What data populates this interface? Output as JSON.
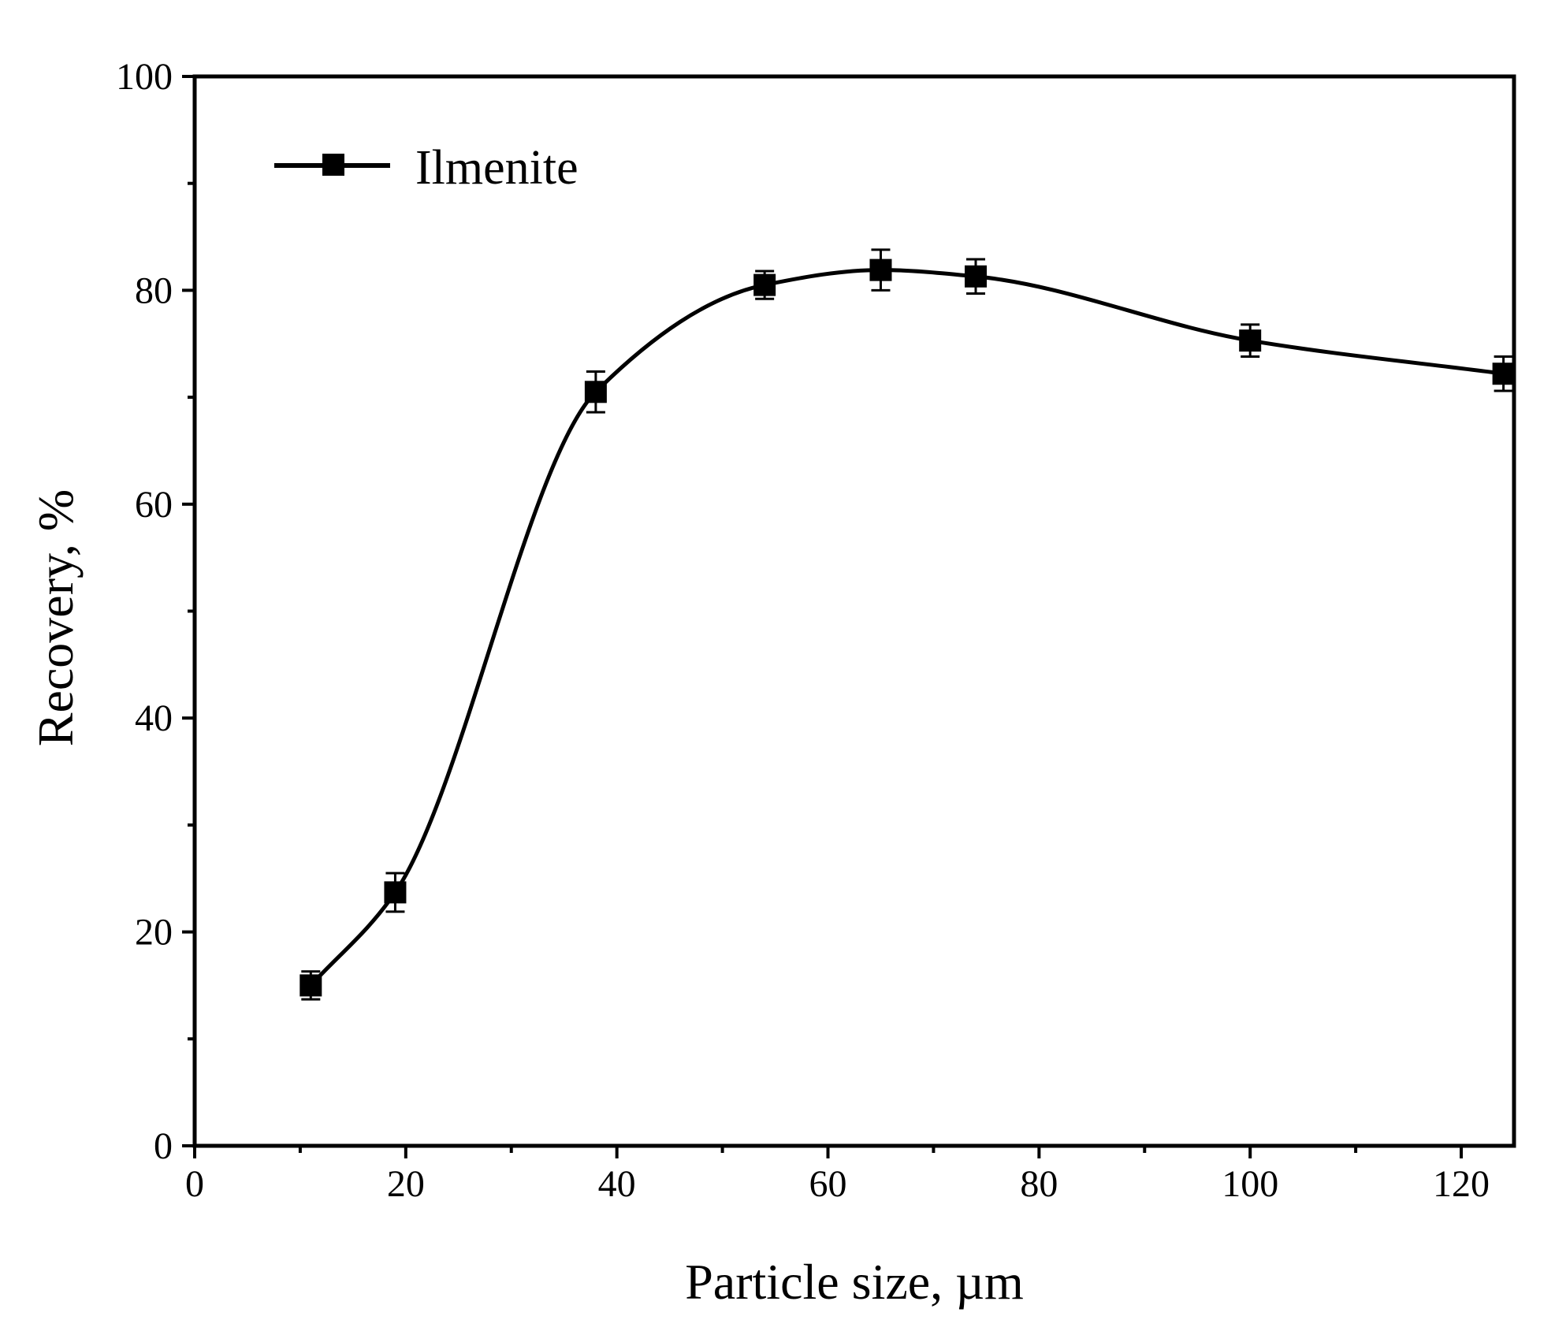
{
  "chart_data": {
    "type": "line",
    "title": "",
    "xlabel": "Particle size, µm",
    "ylabel": "Recovery, %",
    "xlim": [
      0,
      125
    ],
    "ylim": [
      0,
      100
    ],
    "x_ticks": [
      "0",
      "20",
      "40",
      "60",
      "80",
      "100",
      "120"
    ],
    "y_ticks": [
      "0",
      "20",
      "40",
      "60",
      "80",
      "100"
    ],
    "grid": false,
    "legend_position": "top-left",
    "series": [
      {
        "name": "Ilmenite",
        "color": "#000000",
        "marker": "square",
        "smooth": true,
        "x": [
          11,
          19,
          38,
          54,
          65,
          74,
          100,
          124
        ],
        "y": [
          15.0,
          23.7,
          70.5,
          80.5,
          81.9,
          81.3,
          75.3,
          72.2
        ],
        "error": [
          1.3,
          1.8,
          1.9,
          1.3,
          1.9,
          1.6,
          1.5,
          1.6
        ]
      }
    ]
  }
}
